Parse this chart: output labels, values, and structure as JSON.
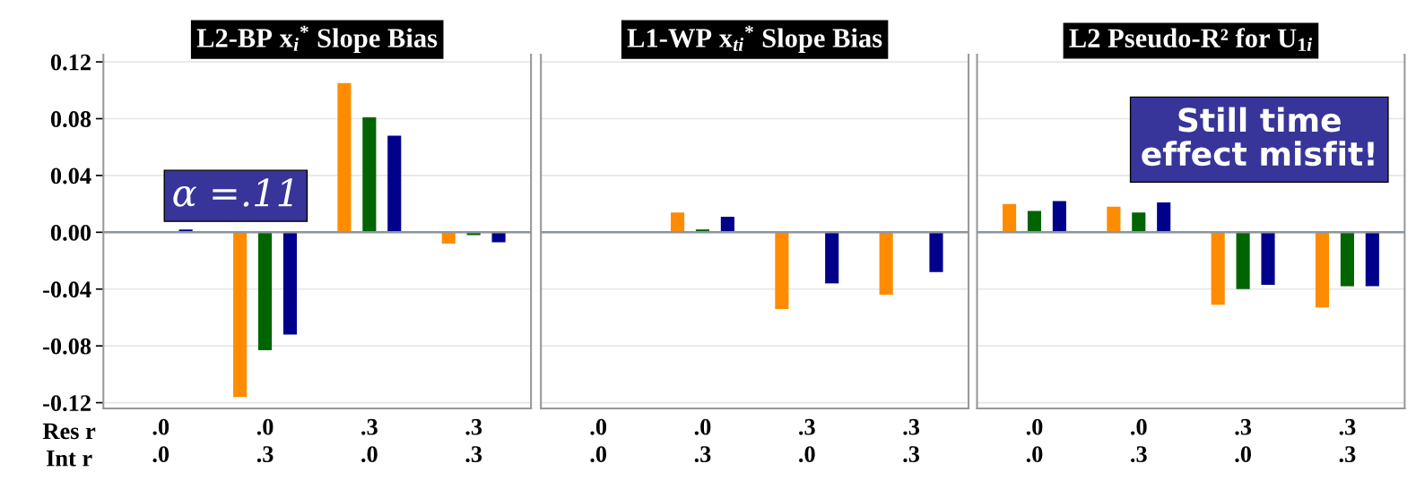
{
  "chart_data": [
    {
      "type": "bar",
      "title": "L2-BP x$_{i}$$^{*}$ Slope Bias",
      "categories": [
        ".0\n.0",
        ".0\n.3",
        ".3\n.0",
        ".3\n.3"
      ],
      "series": [
        {
          "color": "#ff8c00",
          "values": [
            0.0,
            -0.116,
            0.105,
            -0.008
          ]
        },
        {
          "color": "#006400",
          "values": [
            0.0,
            -0.083,
            0.081,
            -0.002
          ]
        },
        {
          "color": "#00008b",
          "values": [
            0.002,
            -0.072,
            0.068,
            -0.007
          ]
        }
      ],
      "ylim": [
        -0.124,
        0.125
      ],
      "yticks": [
        {
          "value": -0.12,
          "label": "-0.12"
        },
        {
          "value": -0.08,
          "label": "-0.08"
        },
        {
          "value": -0.04,
          "label": "-0.04"
        },
        {
          "value": 0,
          "label": "0.00"
        },
        {
          "value": 0.04,
          "label": "0.04"
        },
        {
          "value": 0.08,
          "label": "0.08"
        },
        {
          "value": 0.12,
          "label": "0.12"
        }
      ],
      "grid": "y",
      "annotations": [
        "Res r\nInt r",
        "α =.11"
      ]
    },
    {
      "type": "bar",
      "title": "L1-WP x$_{ti}$$^{*}$ Slope Bias",
      "categories": [
        ".0\n.0",
        ".0\n.3",
        ".3\n.0",
        ".3\n.3"
      ],
      "series": [
        {
          "color": "#ff8c00",
          "values": [
            0.0,
            0.014,
            -0.054,
            -0.044
          ]
        },
        {
          "color": "#006400",
          "values": [
            0.0,
            0.002,
            0.0,
            0.0
          ]
        },
        {
          "color": "#00008b",
          "values": [
            0.0,
            0.011,
            -0.036,
            -0.028
          ]
        }
      ],
      "ylim": [
        -0.124,
        0.125
      ],
      "yticks": [
        {
          "value": -0.12,
          "label": null
        },
        {
          "value": -0.08,
          "label": null
        },
        {
          "value": -0.04,
          "label": null
        },
        {
          "value": 0,
          "label": null
        },
        {
          "value": 0.04,
          "label": null
        },
        {
          "value": 0.08,
          "label": null
        },
        {
          "value": 0.12,
          "label": null
        }
      ],
      "grid": "y",
      "tick_labels": "x"
    },
    {
      "type": "bar",
      "title": "L2 Pseudo-R² for U$_{1i}$",
      "categories": [
        ".0\n.0",
        ".0\n.3",
        ".3\n.0",
        ".3\n.3"
      ],
      "series": [
        {
          "color": "#ff8c00",
          "values": [
            0.02,
            0.018,
            -0.051,
            -0.053
          ]
        },
        {
          "color": "#006400",
          "values": [
            0.015,
            0.014,
            -0.04,
            -0.038
          ]
        },
        {
          "color": "#00008b",
          "values": [
            0.022,
            0.021,
            -0.037,
            -0.038
          ]
        }
      ],
      "ylim": [
        -0.124,
        0.125
      ],
      "yticks": [
        {
          "value": -0.12,
          "label": null
        },
        {
          "value": -0.08,
          "label": null
        },
        {
          "value": -0.04,
          "label": null
        },
        {
          "value": 0,
          "label": null
        },
        {
          "value": 0.04,
          "label": null
        },
        {
          "value": 0.08,
          "label": null
        },
        {
          "value": 0.12,
          "label": null
        }
      ],
      "grid": "y",
      "tick_labels": "x",
      "annotations": [
        "Still time\neffect misfit!"
      ]
    }
  ]
}
